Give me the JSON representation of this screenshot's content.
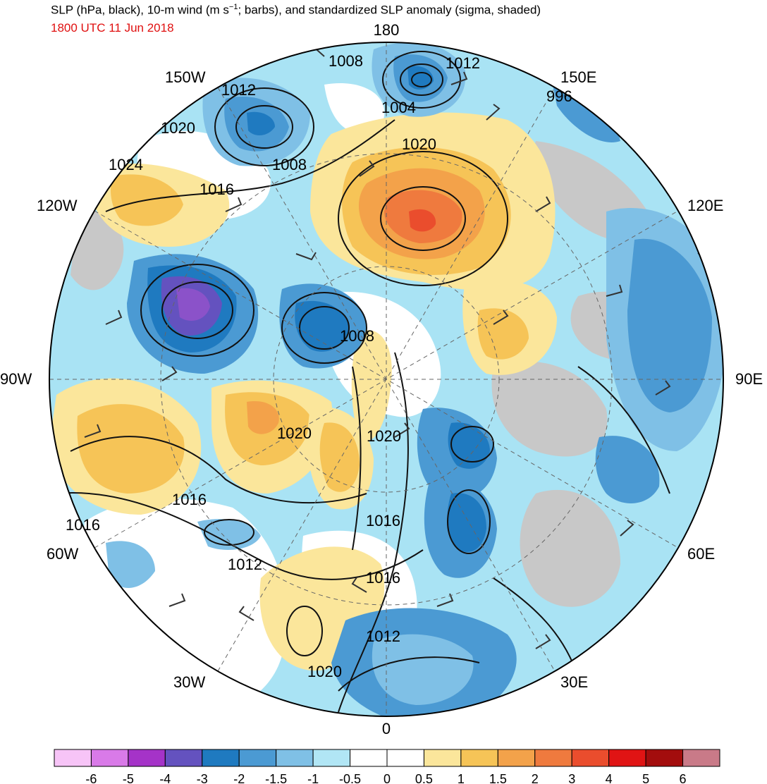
{
  "title": {
    "prefix": "SLP (hPa, black), 10-m wind (m s",
    "exponent": "−1",
    "suffix": "; barbs), and standardized SLP anomaly (sigma, shaded)"
  },
  "valid_time": "1800 UTC 11 Jun 2018",
  "colors": {
    "title": "#000000",
    "valid_time": "#e01010",
    "land_mask": "#c8c8c8",
    "contour": "#111111",
    "barb": "#333333"
  },
  "longitude_labels": [
    "180",
    "150E",
    "120E",
    "90E",
    "60E",
    "30E",
    "0",
    "30W",
    "60W",
    "90W",
    "120W",
    "150W"
  ],
  "isobar_labels": [
    "1008",
    "1012",
    "996",
    "1012",
    "1004",
    "1020",
    "1008",
    "1016",
    "1020",
    "1024",
    "1008",
    "1020",
    "1020",
    "1016",
    "1016",
    "1012",
    "1016",
    "1012",
    "1020",
    "1016"
  ],
  "colorbar": {
    "labels": [
      "-6",
      "-5",
      "-4",
      "-3",
      "-2",
      "-1.5",
      "-1",
      "-0.5",
      "0",
      "0.5",
      "1",
      "1.5",
      "2",
      "3",
      "4",
      "5",
      "6"
    ],
    "colors": [
      "#f7c4f7",
      "#d97ae8",
      "#a533c8",
      "#6452bf",
      "#1f7ac0",
      "#4b9ad3",
      "#7fc0e6",
      "#b1e6f5",
      "#ffffff",
      "#ffffff",
      "#fbe69b",
      "#f6c457",
      "#f3a24a",
      "#ef7a3e",
      "#ea4d2d",
      "#e01414",
      "#a30d0d",
      "#c97a88"
    ]
  }
}
